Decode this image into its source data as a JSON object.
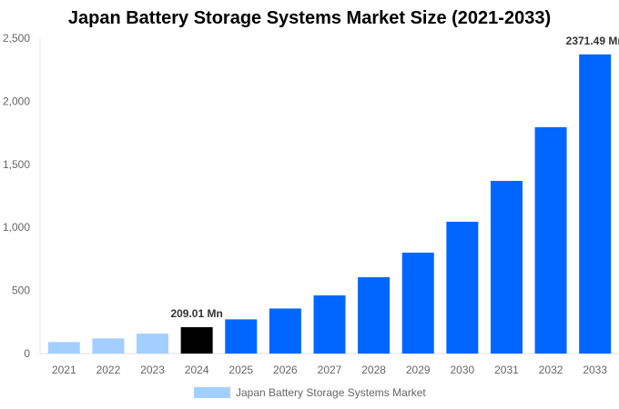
{
  "chart_data": {
    "type": "bar",
    "title": "Japan Battery Storage Systems Market Size (2021-2033)",
    "categories": [
      "2021",
      "2022",
      "2023",
      "2024",
      "2025",
      "2026",
      "2027",
      "2028",
      "2029",
      "2030",
      "2031",
      "2032",
      "2033"
    ],
    "series": [
      {
        "name": "Japan Battery Storage Systems Market",
        "values": [
          91,
          120,
          158,
          209.01,
          271,
          357,
          461,
          605,
          800,
          1045,
          1369,
          1794,
          2371.49
        ]
      }
    ],
    "bar_colors": [
      "#a3cfff",
      "#a3cfff",
      "#a3cfff",
      "#000000",
      "#0066ff",
      "#0066ff",
      "#0066ff",
      "#0066ff",
      "#0066ff",
      "#0066ff",
      "#0066ff",
      "#0066ff",
      "#0066ff"
    ],
    "data_labels": {
      "3": "209.01 Mn",
      "12": "2371.49 Mn"
    },
    "yticks": [
      0,
      500,
      1000,
      1500,
      2000,
      2500
    ],
    "ytick_labels": [
      "0",
      "500",
      "1,000",
      "1,500",
      "2,000",
      "2,500"
    ],
    "ylim": [
      0,
      2500
    ],
    "xlabel": "",
    "ylabel": "",
    "grid": false,
    "legend": "bottom"
  }
}
